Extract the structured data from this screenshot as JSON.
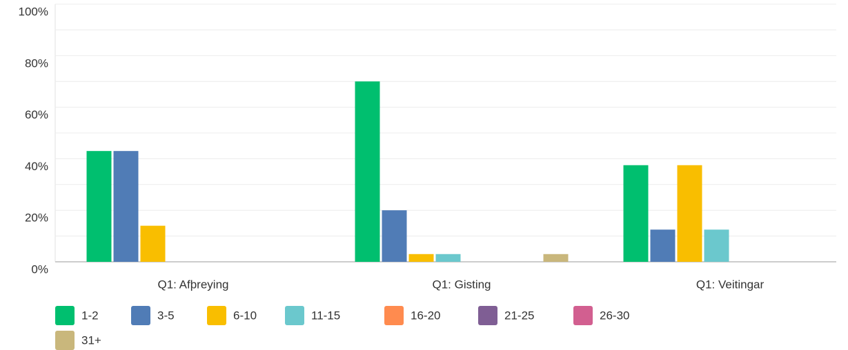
{
  "chart_data": {
    "type": "bar",
    "categories": [
      "Q1: Afþreying",
      "Q1: Gisting",
      "Q1: Veitingar"
    ],
    "series": [
      {
        "name": "1-2",
        "color": "#00bf6f",
        "values": [
          43,
          70,
          37.5
        ]
      },
      {
        "name": "3-5",
        "color": "#507cb6",
        "values": [
          43,
          20,
          12.5
        ]
      },
      {
        "name": "6-10",
        "color": "#f9be00",
        "values": [
          14,
          3,
          37.5
        ]
      },
      {
        "name": "11-15",
        "color": "#6bc8cd",
        "values": [
          0,
          3,
          12.5
        ]
      },
      {
        "name": "16-20",
        "color": "#ff8b4f",
        "values": [
          0,
          0,
          0
        ]
      },
      {
        "name": "21-25",
        "color": "#7f5e94",
        "values": [
          0,
          0,
          0
        ]
      },
      {
        "name": "26-30",
        "color": "#d25f90",
        "values": [
          0,
          0,
          0
        ]
      },
      {
        "name": "31+",
        "color": "#c9b77c",
        "values": [
          0,
          3,
          0
        ]
      }
    ],
    "ylim": [
      0,
      100
    ],
    "yticks": [
      {
        "value": 0,
        "label": "0%"
      },
      {
        "value": 20,
        "label": "20%"
      },
      {
        "value": 40,
        "label": "40%"
      },
      {
        "value": 60,
        "label": "60%"
      },
      {
        "value": 80,
        "label": "80%"
      },
      {
        "value": 100,
        "label": "100%"
      }
    ],
    "minor_yticks": [
      10,
      30,
      50,
      70,
      90
    ],
    "grid": true,
    "legend": "bottom"
  }
}
